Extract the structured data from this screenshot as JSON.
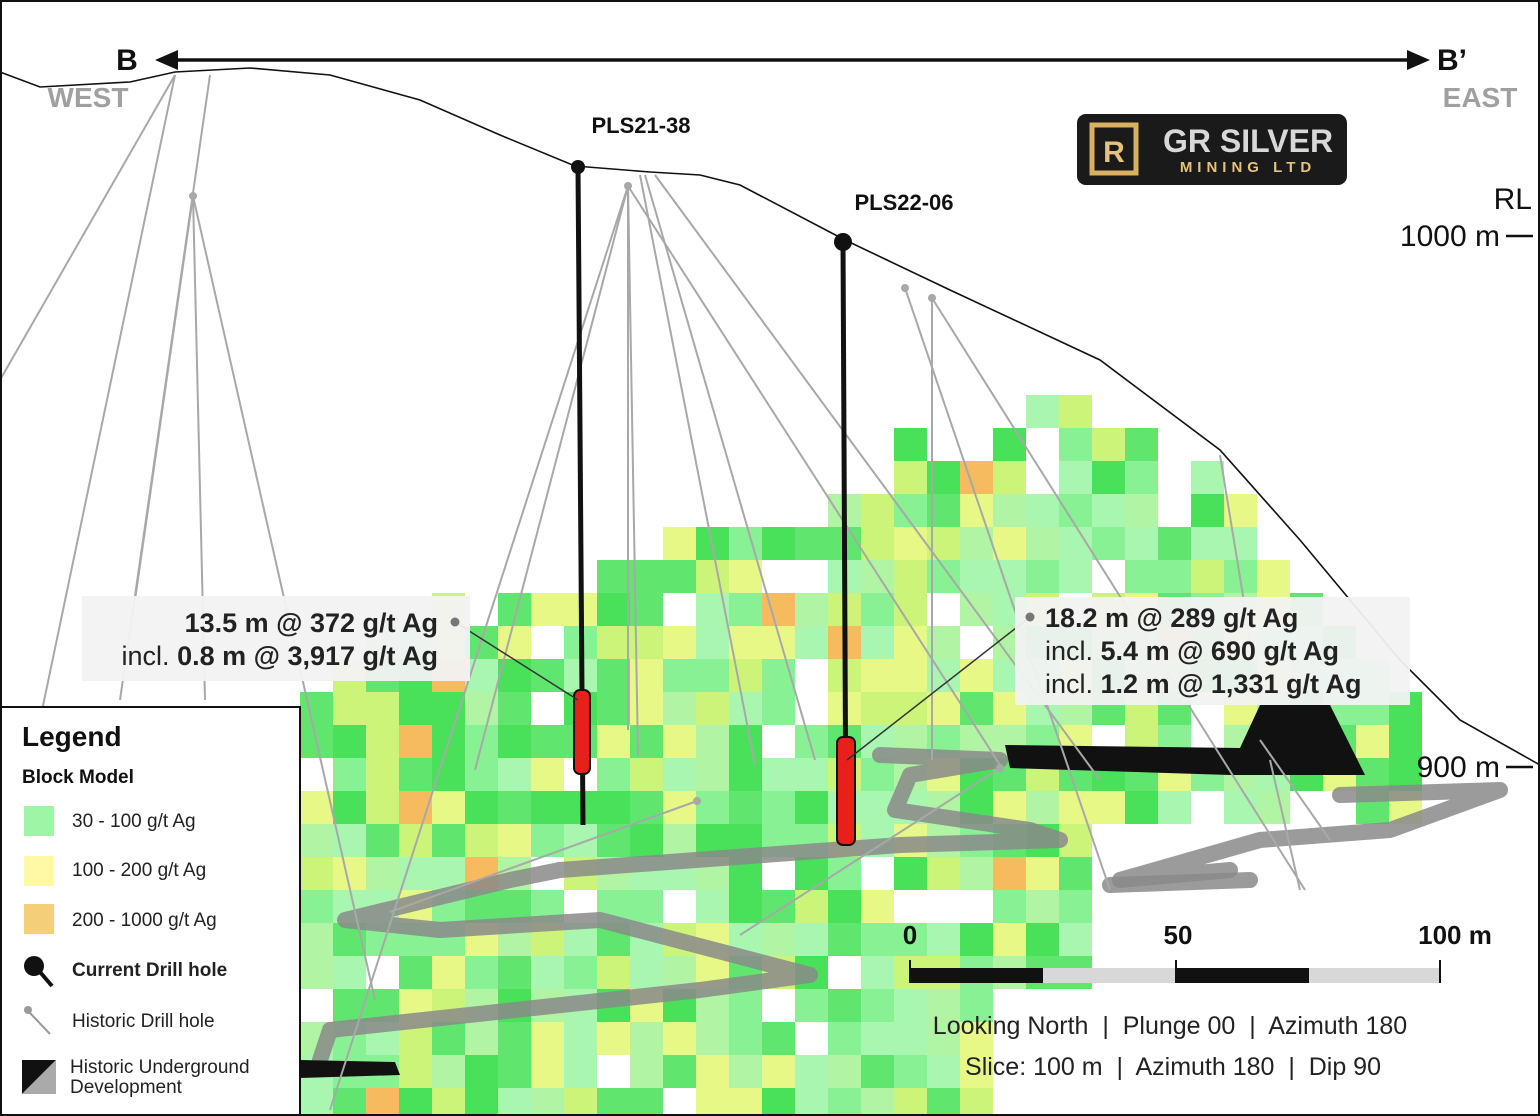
{
  "section": {
    "start": "B",
    "end": "B’",
    "west": "WEST",
    "east": "EAST"
  },
  "logo": {
    "line1": "GR SILVER",
    "line2": "MINING LTD"
  },
  "elevation": {
    "unit_label": "RL",
    "upper": "1000 m",
    "lower": "900 m"
  },
  "drill_holes": [
    {
      "label": "PLS21-38"
    },
    {
      "label": "PLS22-06"
    }
  ],
  "callouts": [
    {
      "lines": [
        {
          "text": "13.5 m @ 372 g/t Ag"
        },
        {
          "prefix": "incl.",
          "text": "0.8 m @ 3,917 g/t Ag"
        }
      ]
    },
    {
      "lines": [
        {
          "text": "18.2 m @ 289 g/t Ag"
        },
        {
          "prefix": "incl.",
          "text": "5.4 m @ 690 g/t Ag"
        },
        {
          "prefix": "incl.",
          "text": "1.2 m @ 1,331 g/t Ag"
        }
      ]
    }
  ],
  "legend": {
    "title": "Legend",
    "subtitle": "Block Model",
    "items": [
      "30 - 100 g/t Ag",
      "100 - 200 g/t Ag",
      "200 - 1000 g/t Ag",
      "Current Drill hole",
      "Historic Drill hole",
      "Historic Underground Development"
    ]
  },
  "scale": {
    "labels": [
      "0",
      "50",
      "100 m"
    ]
  },
  "notes": [
    "Looking North  |  Plunge 00  |  Azimuth 180",
    "Slice: 100 m  |  Azimuth 180  |  Dip 90"
  ]
}
